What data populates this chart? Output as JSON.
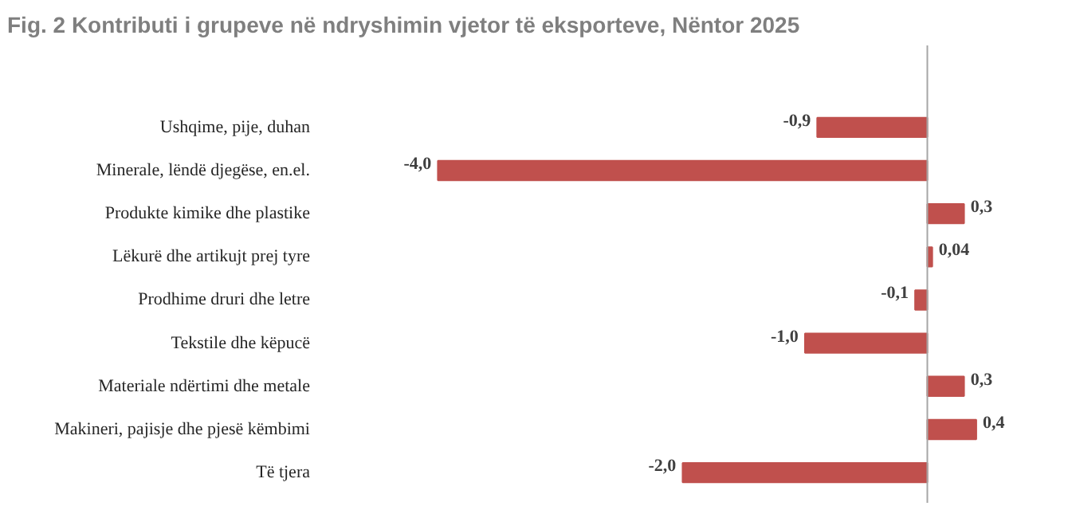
{
  "chart_data": {
    "type": "bar",
    "orientation": "horizontal",
    "title": "Fig. 2 Kontributi i grupeve në ndryshimin vjetor të eksporteve, Nëntor 2025",
    "categories": [
      "Ushqime, pije, duhan",
      "Minerale, lëndë djegëse, en.el.",
      "Produkte kimike dhe plastike",
      "Lëkurë dhe artikujt prej tyre",
      "Prodhime druri dhe letre",
      "Tekstile dhe këpucë",
      "Materiale ndërtimi dhe metale",
      "Makineri, pajisje dhe pjesë këmbimi",
      "Të tjera"
    ],
    "values": [
      -0.9,
      -4.0,
      0.3,
      0.04,
      -0.1,
      -1.0,
      0.3,
      0.4,
      -2.0
    ],
    "value_labels": [
      "-0,9",
      "-4,0",
      "0,3",
      "0,04",
      "-0,1",
      "-1,0",
      "0,3",
      "0,4",
      "-2,0"
    ],
    "color": "#c0504d",
    "grid": false
  }
}
